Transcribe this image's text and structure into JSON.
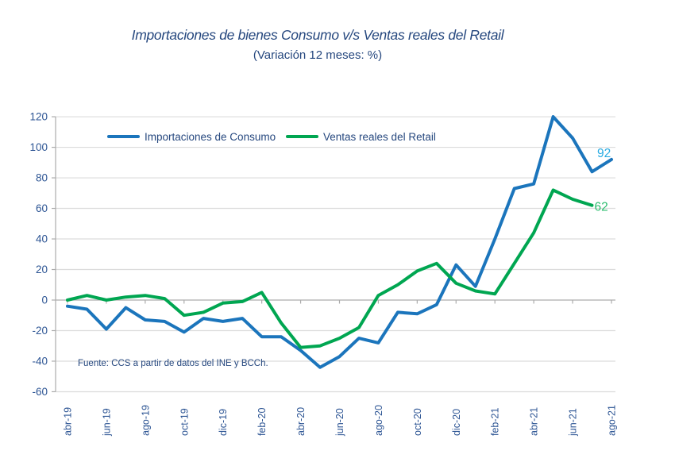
{
  "header": {
    "title": "Importaciones de bienes Consumo v/s Ventas reales del Retail",
    "subtitle": "(Variación 12 meses: %)"
  },
  "source_note": "Fuente: CCS a partir de datos del INE y BCCh.",
  "colors": {
    "text": "#25477E",
    "axis_text": "#2D5594",
    "grid": "#DCDCDC",
    "axis": "#ACACAC",
    "imports_line": "#1B75BC",
    "imports_end_label": "#29ABE2",
    "retail_line": "#00A651",
    "retail_end_label": "#2BBD6E"
  },
  "chart_data": {
    "type": "line",
    "title": "Importaciones de bienes Consumo v/s Ventas reales del Retail",
    "subtitle": "(Variación 12 meses: %)",
    "ylabel": "Variación 12 meses (%)",
    "ylim": [
      -60,
      120
    ],
    "y_ticks": [
      -60,
      -40,
      -20,
      0,
      20,
      40,
      60,
      80,
      100,
      120
    ],
    "grid": true,
    "legend_position": "top-inside",
    "x": [
      "abr-19",
      "may-19",
      "jun-19",
      "jul-19",
      "ago-19",
      "sep-19",
      "oct-19",
      "nov-19",
      "dic-19",
      "ene-20",
      "feb-20",
      "mar-20",
      "abr-20",
      "may-20",
      "jun-20",
      "jul-20",
      "ago-20",
      "sep-20",
      "oct-20",
      "nov-20",
      "dic-20",
      "ene-21",
      "feb-21",
      "mar-21",
      "abr-21",
      "may-21",
      "jun-21",
      "jul-21",
      "ago-21"
    ],
    "x_tick_labels": [
      "abr-19",
      "jun-19",
      "ago-19",
      "oct-19",
      "dic-19",
      "feb-20",
      "abr-20",
      "jun-20",
      "ago-20",
      "oct-20",
      "dic-20",
      "feb-21",
      "abr-21",
      "jun-21",
      "ago-21"
    ],
    "series": [
      {
        "name": "Importaciones de Consumo",
        "color": "#1B75BC",
        "end_label": "92",
        "end_label_color": "#29ABE2",
        "values": [
          -4,
          -6,
          -19,
          -5,
          -13,
          -14,
          -21,
          -12,
          -14,
          -12,
          -24,
          -24,
          -33,
          -44,
          -37,
          -25,
          -28,
          -8,
          -9,
          -3,
          23,
          9,
          40,
          73,
          76,
          120,
          106,
          84,
          92
        ]
      },
      {
        "name": "Ventas reales del Retail",
        "color": "#00A651",
        "end_label": "62",
        "end_label_color": "#2BBD6E",
        "values": [
          0,
          3,
          0,
          2,
          3,
          1,
          -10,
          -8,
          -2,
          -1,
          5,
          -15,
          -31,
          -30,
          -25,
          -18,
          3,
          10,
          19,
          24,
          11,
          6,
          4,
          24,
          44,
          72,
          66,
          62,
          null
        ]
      }
    ]
  }
}
